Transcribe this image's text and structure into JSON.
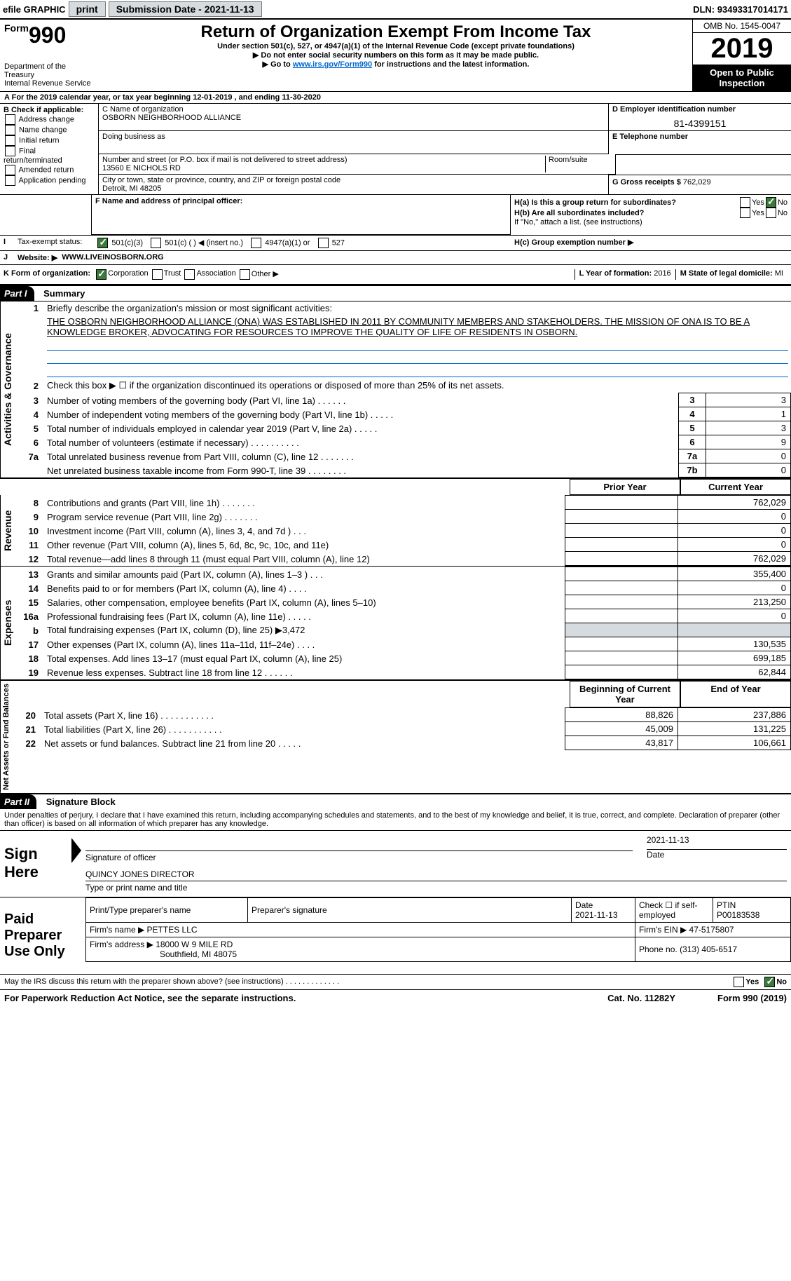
{
  "topbar": {
    "efile_label": "efile GRAPHIC",
    "print_btn": "print",
    "submission_label": "Submission Date - ",
    "submission_date": "2021-11-13",
    "dln_label": "DLN: ",
    "dln": "93493317014171"
  },
  "header": {
    "form_prefix": "Form",
    "form_number": "990",
    "title": "Return of Organization Exempt From Income Tax",
    "subtitle": "Under section 501(c), 527, or 4947(a)(1) of the Internal Revenue Code (except private foundations)",
    "note1": "▶ Do not enter social security numbers on this form as it may be made public.",
    "note2_pre": "▶ Go to ",
    "note2_link": "www.irs.gov/Form990",
    "note2_post": " for instructions and the latest information.",
    "dept": "Department of the Treasury\nInternal Revenue Service",
    "omb": "OMB No. 1545-0047",
    "year": "2019",
    "inspection": "Open to Public Inspection"
  },
  "line_a": "For the 2019 calendar year, or tax year beginning 12-01-2019   , and ending 11-30-2020",
  "block_b": {
    "label": "B Check if applicable:",
    "opts": [
      "Address change",
      "Name change",
      "Initial return",
      "Final return/terminated",
      "Amended return",
      "Application pending"
    ]
  },
  "block_c": {
    "name_label": "C Name of organization",
    "name": "OSBORN NEIGHBORHOOD ALLIANCE",
    "dba_label": "Doing business as",
    "street_label": "Number and street (or P.O. box if mail is not delivered to street address)",
    "street": "13560 E NICHOLS RD",
    "room_label": "Room/suite",
    "city_label": "City or town, state or province, country, and ZIP or foreign postal code",
    "city": "Detroit, MI  48205"
  },
  "block_d": {
    "label": "D Employer identification number",
    "value": "81-4399151"
  },
  "block_e": {
    "label": "E Telephone number"
  },
  "block_g": {
    "label": "G Gross receipts $ ",
    "value": "762,029"
  },
  "block_f": {
    "label": "F  Name and address of principal officer:"
  },
  "block_h": {
    "a_label": "H(a)  Is this a group return for subordinates?",
    "b_label": "H(b)  Are all subordinates included?",
    "yes": "Yes",
    "no": "No",
    "b_note": "If \"No,\" attach a list. (see instructions)",
    "c_label": "H(c)  Group exemption number ▶"
  },
  "line_i": {
    "label": "Tax-exempt status:",
    "opts": [
      "501(c)(3)",
      "501(c) (  ) ◀ (insert no.)",
      "4947(a)(1) or",
      "527"
    ]
  },
  "line_j": {
    "label": "Website: ▶",
    "value": "WWW.LIVEINOSBORN.ORG"
  },
  "line_k": {
    "label": "K Form of organization:",
    "opts": [
      "Corporation",
      "Trust",
      "Association",
      "Other ▶"
    ]
  },
  "line_l": {
    "label": "L Year of formation: ",
    "value": "2016"
  },
  "line_m": {
    "label": "M State of legal domicile: ",
    "value": "MI"
  },
  "part1": {
    "header": "Part I",
    "title": "Summary",
    "q1_label": "Briefly describe the organization's mission or most significant activities:",
    "q1_text": "THE OSBORN NEIGHBORHOOD ALLIANCE (ONA) WAS ESTABLISHED IN 2011 BY COMMUNITY MEMBERS AND STAKEHOLDERS. THE MISSION OF ONA IS TO BE A KNOWLEDGE BROKER, ADVOCATING FOR RESOURCES TO IMPROVE THE QUALITY OF LIFE OF RESIDENTS IN OSBORN.",
    "q2": "Check this box ▶ ☐  if the organization discontinued its operations or disposed of more than 25% of its net assets.",
    "section_gov": "Activities & Governance",
    "section_rev": "Revenue",
    "section_exp": "Expenses",
    "section_net": "Net Assets or Fund Balances",
    "col_prior": "Prior Year",
    "col_current": "Current Year",
    "col_begin": "Beginning of Current Year",
    "col_end": "End of Year",
    "lines_gov": [
      {
        "n": "3",
        "t": "Number of voting members of the governing body (Part VI, line 1a)   .    .    .    .    .    .",
        "box": "3",
        "v": "3"
      },
      {
        "n": "4",
        "t": "Number of independent voting members of the governing body (Part VI, line 1b)   .    .    .    .    .",
        "box": "4",
        "v": "1"
      },
      {
        "n": "5",
        "t": "Total number of individuals employed in calendar year 2019 (Part V, line 2a)   .    .    .    .    .",
        "box": "5",
        "v": "3"
      },
      {
        "n": "6",
        "t": "Total number of volunteers (estimate if necessary)   .    .    .    .    .    .    .    .    .    .",
        "box": "6",
        "v": "9"
      },
      {
        "n": "7a",
        "t": "Total unrelated business revenue from Part VIII, column (C), line 12   .    .    .    .    .    .    .",
        "box": "7a",
        "v": "0"
      },
      {
        "n": "",
        "t": "Net unrelated business taxable income from Form 990-T, line 39   .    .    .    .    .    .    .    .",
        "box": "7b",
        "v": "0"
      }
    ],
    "lines_rev": [
      {
        "n": "8",
        "t": "Contributions and grants (Part VIII, line 1h)   .    .    .    .    .    .    .",
        "p": "",
        "c": "762,029"
      },
      {
        "n": "9",
        "t": "Program service revenue (Part VIII, line 2g)   .    .    .    .    .    .    .",
        "p": "",
        "c": "0"
      },
      {
        "n": "10",
        "t": "Investment income (Part VIII, column (A), lines 3, 4, and 7d )   .    .    .",
        "p": "",
        "c": "0"
      },
      {
        "n": "11",
        "t": "Other revenue (Part VIII, column (A), lines 5, 6d, 8c, 9c, 10c, and 11e)",
        "p": "",
        "c": "0"
      },
      {
        "n": "12",
        "t": "Total revenue—add lines 8 through 11 (must equal Part VIII, column (A), line 12)",
        "p": "",
        "c": "762,029"
      }
    ],
    "lines_exp": [
      {
        "n": "13",
        "t": "Grants and similar amounts paid (Part IX, column (A), lines 1–3 )   .    .    .",
        "p": "",
        "c": "355,400"
      },
      {
        "n": "14",
        "t": "Benefits paid to or for members (Part IX, column (A), line 4)   .    .    .    .",
        "p": "",
        "c": "0"
      },
      {
        "n": "15",
        "t": "Salaries, other compensation, employee benefits (Part IX, column (A), lines 5–10)",
        "p": "",
        "c": "213,250"
      },
      {
        "n": "16a",
        "t": "Professional fundraising fees (Part IX, column (A), line 11e)   .    .    .    .    .",
        "p": "",
        "c": "0"
      },
      {
        "n": "b",
        "t": "Total fundraising expenses (Part IX, column (D), line 25) ▶3,472",
        "p": "shade",
        "c": "shade"
      },
      {
        "n": "17",
        "t": "Other expenses (Part IX, column (A), lines 11a–11d, 11f–24e)   .    .    .    .",
        "p": "",
        "c": "130,535"
      },
      {
        "n": "18",
        "t": "Total expenses. Add lines 13–17 (must equal Part IX, column (A), line 25)",
        "p": "",
        "c": "699,185"
      },
      {
        "n": "19",
        "t": "Revenue less expenses. Subtract line 18 from line 12   .    .    .    .    .    .",
        "p": "",
        "c": "62,844"
      }
    ],
    "lines_net": [
      {
        "n": "20",
        "t": "Total assets (Part X, line 16)   .    .    .    .    .    .    .    .    .    .    .",
        "p": "88,826",
        "c": "237,886"
      },
      {
        "n": "21",
        "t": "Total liabilities (Part X, line 26)   .    .    .    .    .    .    .    .    .    .    .",
        "p": "45,009",
        "c": "131,225"
      },
      {
        "n": "22",
        "t": "Net assets or fund balances. Subtract line 21 from line 20   .    .    .    .    .",
        "p": "43,817",
        "c": "106,661"
      }
    ]
  },
  "part2": {
    "header": "Part II",
    "title": "Signature Block",
    "penalties": "Under penalties of perjury, I declare that I have examined this return, including accompanying schedules and statements, and to the best of my knowledge and belief, it is true, correct, and complete. Declaration of preparer (other than officer) is based on all information of which preparer has any knowledge."
  },
  "sign": {
    "label": "Sign Here",
    "sig_label": "Signature of officer",
    "date_label": "Date",
    "date": "2021-11-13",
    "name": "QUINCY JONES  DIRECTOR",
    "name_label": "Type or print name and title"
  },
  "paid": {
    "label": "Paid Preparer Use Only",
    "h1": "Print/Type preparer's name",
    "h2": "Preparer's signature",
    "h3": "Date",
    "h3v": "2021-11-13",
    "h4": "Check ☐ if self-employed",
    "h5": "PTIN",
    "h5v": "P00183538",
    "firm_label": "Firm's name    ▶ ",
    "firm": "PETTES LLC",
    "ein_label": "Firm's EIN ▶ ",
    "ein": "47-5175807",
    "addr_label": "Firm's address ▶ ",
    "addr1": "18000 W 9 MILE RD",
    "addr2": "Southfield, MI  48075",
    "phone_label": "Phone no. ",
    "phone": "(313) 405-6517"
  },
  "discuss": {
    "text": "May the IRS discuss this return with the preparer shown above? (see instructions)   .    .    .    .    .    .    .    .    .    .    .    .    .",
    "yes": "Yes",
    "no": "No"
  },
  "footer": {
    "left": "For Paperwork Reduction Act Notice, see the separate instructions.",
    "center": "Cat. No. 11282Y",
    "right": "Form 990 (2019)"
  }
}
